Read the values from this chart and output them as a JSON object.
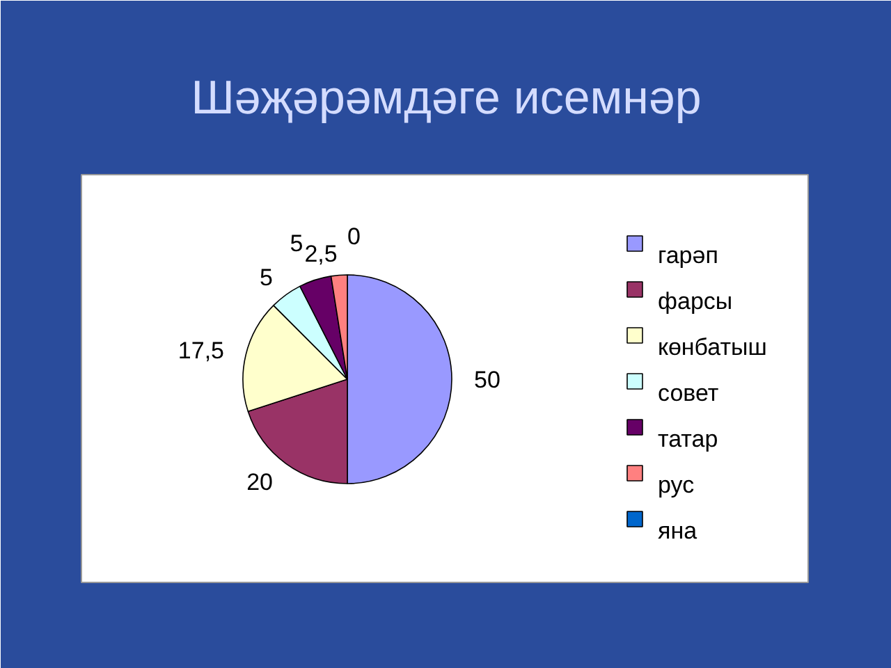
{
  "chart_data": {
    "type": "pie",
    "title": "Шәҗәрәмдәге исемнәр",
    "categories": [
      "гарәп",
      "фарсы",
      "көнбатыш",
      "совет",
      "татар",
      "рус",
      "яна"
    ],
    "values": [
      50,
      20,
      17.5,
      5,
      5,
      2.5,
      0
    ],
    "value_labels": [
      "50",
      "20",
      "17,5",
      "5",
      "5",
      "2,5",
      "0"
    ],
    "colors": [
      "#9999ff",
      "#993366",
      "#ffffcc",
      "#ccffff",
      "#660066",
      "#ff8080",
      "#0066cc"
    ],
    "legend": "right"
  }
}
